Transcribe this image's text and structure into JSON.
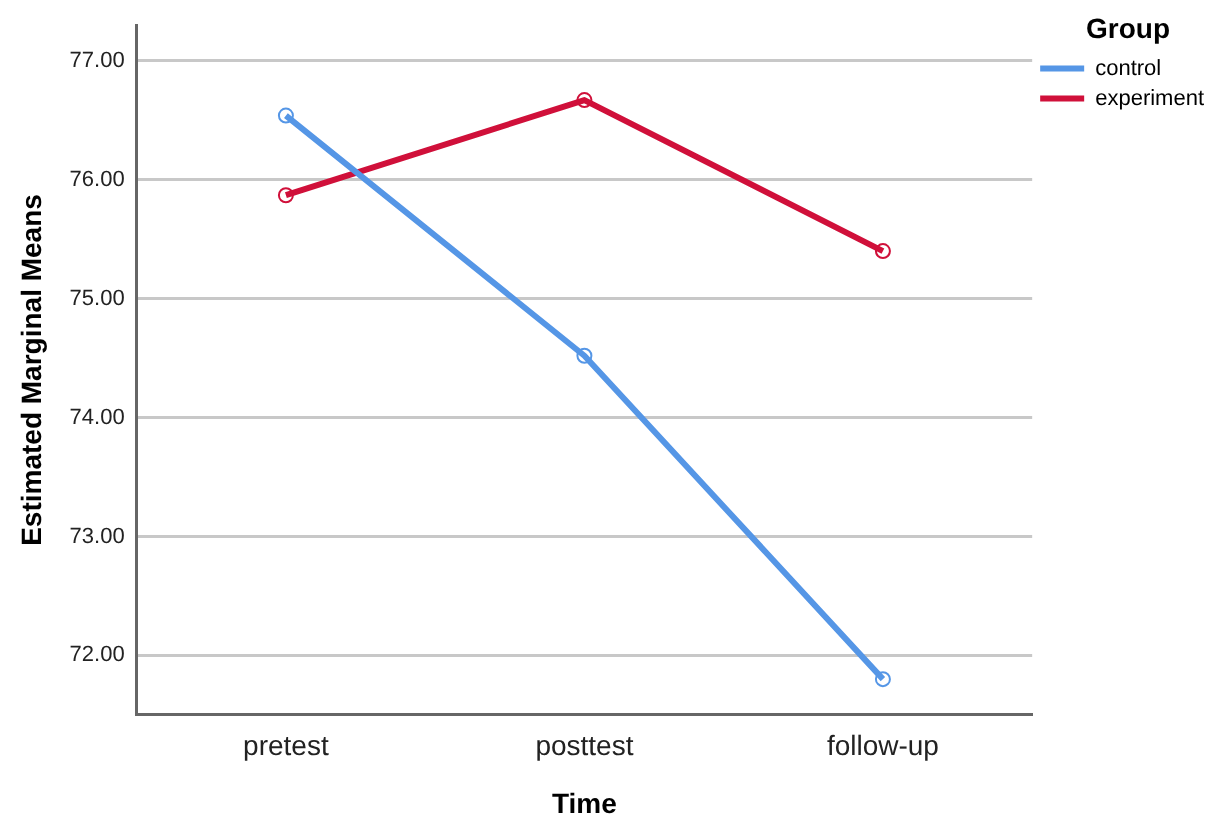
{
  "chart_data": {
    "type": "line",
    "xlabel": "Time",
    "ylabel": "Estimated Marginal Means",
    "legend_title": "Group",
    "categories": [
      "pretest",
      "posttest",
      "follow-up"
    ],
    "series": [
      {
        "name": "control",
        "color": "#5596e6",
        "values": [
          76.54,
          74.52,
          71.8
        ]
      },
      {
        "name": "experiment",
        "color": "#d0103a",
        "values": [
          75.87,
          76.67,
          75.4
        ]
      }
    ],
    "ylim": [
      71.5,
      77.3
    ],
    "yticks": [
      {
        "value": 72,
        "label": "72.00"
      },
      {
        "value": 73,
        "label": "73.00"
      },
      {
        "value": 74,
        "label": "74.00"
      },
      {
        "value": 75,
        "label": "75.00"
      },
      {
        "value": 76,
        "label": "76.00"
      },
      {
        "value": 77,
        "label": "77.00"
      }
    ],
    "grid": "y",
    "legend": "top right",
    "marker": "circle",
    "line_style": "solid"
  }
}
